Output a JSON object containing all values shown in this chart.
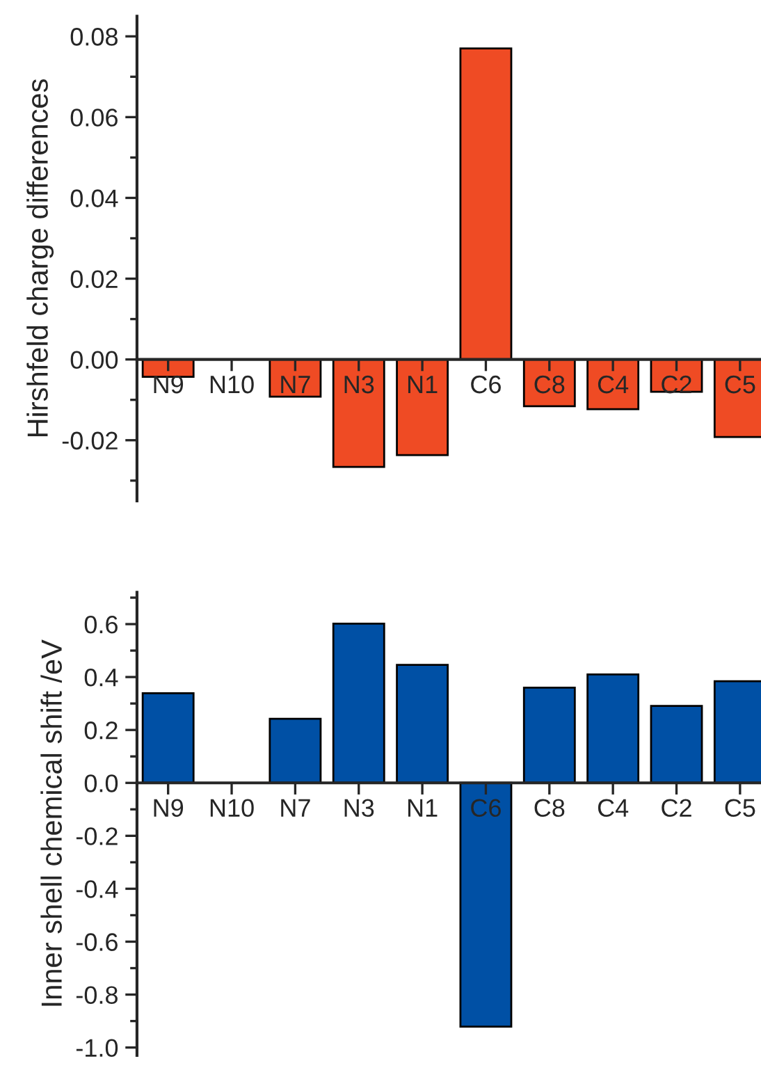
{
  "chart_data": [
    {
      "type": "bar",
      "ylabel": "Hirshfeld charge differences",
      "categories": [
        "N9",
        "N10",
        "N7",
        "N3",
        "N1",
        "C6",
        "C8",
        "C4",
        "C2",
        "C5"
      ],
      "series": [
        {
          "color": "#ef4b24",
          "values": [
            -0.0043,
            null,
            -0.0092,
            -0.0266,
            -0.0237,
            0.077,
            -0.0116,
            -0.0123,
            -0.008,
            -0.0192
          ]
        }
      ],
      "ylim": [
        -0.035,
        0.085
      ],
      "yticks": [
        {
          "value": -0.02,
          "label": "-0.02"
        },
        {
          "value": 0,
          "label": "0.00"
        },
        0.02,
        0.04,
        0.06,
        0.08
      ],
      "grid": false,
      "legend": false
    },
    {
      "type": "bar",
      "ylabel": "Inner shell chemical shift /eV",
      "categories": [
        "N9",
        "N10",
        "N7",
        "N3",
        "N1",
        "C6",
        "C8",
        "C4",
        "C2",
        "C5"
      ],
      "series": [
        {
          "color": "#0050a5",
          "values": [
            0.339,
            null,
            0.242,
            0.602,
            0.446,
            -0.921,
            0.36,
            0.41,
            0.291,
            0.384
          ]
        }
      ],
      "ylim": [
        -1.03,
        0.72
      ],
      "yticks": [
        {
          "value": -1.0,
          "label": "-1.0"
        },
        {
          "value": -0.8,
          "label": "-0.8"
        },
        {
          "value": -0.6,
          "label": "-0.6"
        },
        {
          "value": -0.4,
          "label": "-0.4"
        },
        {
          "value": -0.2,
          "label": "-0.2"
        },
        {
          "value": 0,
          "label": "0.0"
        },
        0.2,
        0.4,
        0.6
      ],
      "grid": false,
      "legend": false
    }
  ]
}
